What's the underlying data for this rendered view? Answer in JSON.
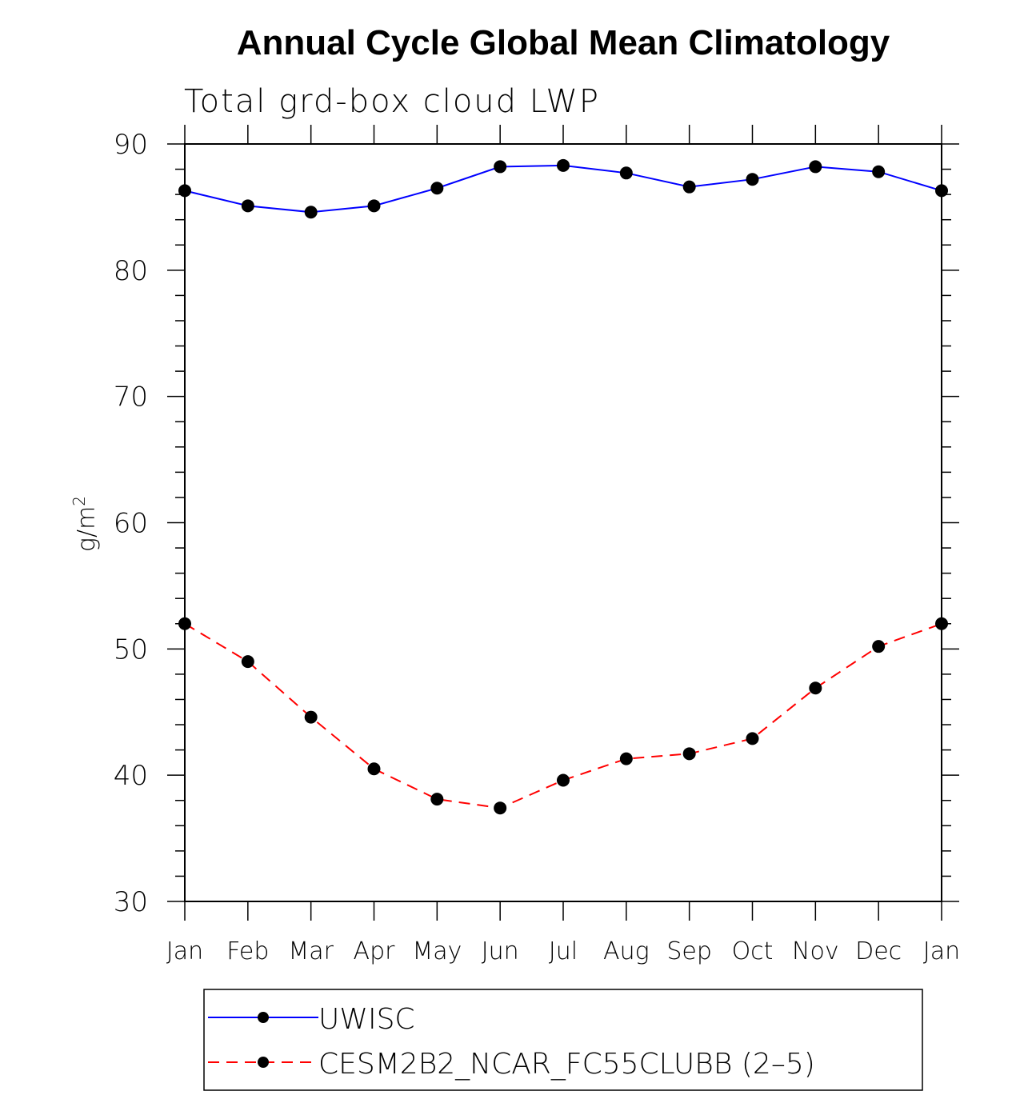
{
  "chart_data": {
    "type": "line",
    "title": "Annual Cycle Global Mean Climatology",
    "subtitle": "Total grd-box cloud LWP",
    "xlabel": "",
    "ylabel": "g/m",
    "ylabel_superscript": "2",
    "ylim": [
      30,
      90
    ],
    "yticks": [
      30,
      40,
      50,
      60,
      70,
      80,
      90
    ],
    "categories": [
      "Jan",
      "Feb",
      "Mar",
      "Apr",
      "May",
      "Jun",
      "Jul",
      "Aug",
      "Sep",
      "Oct",
      "Nov",
      "Dec",
      "Jan"
    ],
    "grid": false,
    "legend_position": "bottom",
    "series": [
      {
        "name": "UWISC",
        "color": "#0000ff",
        "line_style": "solid",
        "marker": "filled-circle",
        "values": [
          86.3,
          85.1,
          84.6,
          85.1,
          86.5,
          88.2,
          88.3,
          87.7,
          86.6,
          87.2,
          88.2,
          87.8,
          86.3
        ]
      },
      {
        "name": "CESM2B2_NCAR_FC55CLUBB (2–5)",
        "color": "#ff0000",
        "line_style": "dashed",
        "marker": "filled-circle",
        "values": [
          52.0,
          49.0,
          44.6,
          40.5,
          38.1,
          37.4,
          39.6,
          41.3,
          41.7,
          42.9,
          46.9,
          50.2,
          52.0
        ]
      }
    ]
  }
}
